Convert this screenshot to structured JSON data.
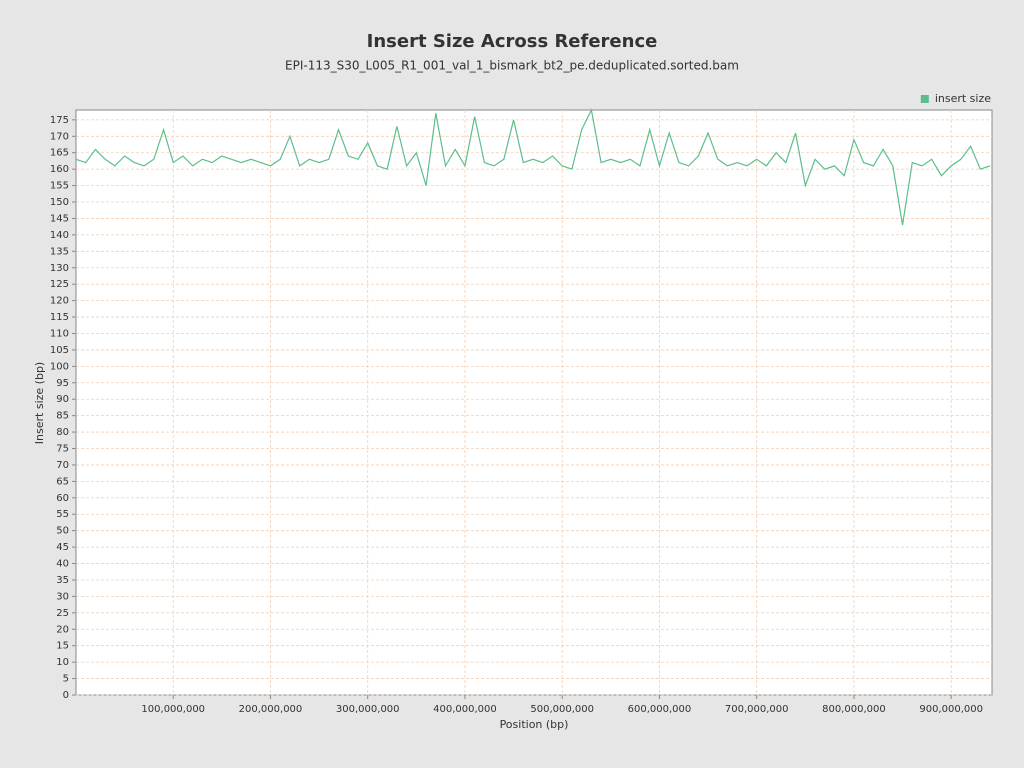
{
  "chart_data": {
    "type": "line",
    "title": "Insert Size Across Reference",
    "subtitle": "EPI-113_S30_L005_R1_001_val_1_bismark_bt2_pe.deduplicated.sorted.bam",
    "x_label": "Position (bp)",
    "y_label": "Insert size (bp)",
    "legend": "top-right",
    "grid": true,
    "xlim": [
      0,
      942000000
    ],
    "ylim": [
      0,
      178
    ],
    "xticks": [
      {
        "value": 100000000,
        "label": "100,000,000"
      },
      {
        "value": 200000000,
        "label": "200,000,000"
      },
      {
        "value": 300000000,
        "label": "300,000,000"
      },
      {
        "value": 400000000,
        "label": "400,000,000"
      },
      {
        "value": 500000000,
        "label": "500,000,000"
      },
      {
        "value": 600000000,
        "label": "600,000,000"
      },
      {
        "value": 700000000,
        "label": "700,000,000"
      },
      {
        "value": 800000000,
        "label": "800,000,000"
      },
      {
        "value": 900000000,
        "label": "900,000,000"
      }
    ],
    "yticks": [
      0,
      5,
      10,
      15,
      20,
      25,
      30,
      35,
      40,
      45,
      50,
      55,
      60,
      65,
      70,
      75,
      80,
      85,
      90,
      95,
      100,
      105,
      110,
      115,
      120,
      125,
      130,
      135,
      140,
      145,
      150,
      155,
      160,
      165,
      170,
      175
    ],
    "x": [
      0,
      10000000,
      20000000,
      30000000,
      40000000,
      50000000,
      60000000,
      70000000,
      80000000,
      90000000,
      100000000,
      110000000,
      120000000,
      130000000,
      140000000,
      150000000,
      160000000,
      170000000,
      180000000,
      190000000,
      200000000,
      210000000,
      220000000,
      230000000,
      240000000,
      250000000,
      260000000,
      270000000,
      280000000,
      290000000,
      300000000,
      310000000,
      320000000,
      330000000,
      340000000,
      350000000,
      360000000,
      370000000,
      380000000,
      390000000,
      400000000,
      410000000,
      420000000,
      430000000,
      440000000,
      450000000,
      460000000,
      470000000,
      480000000,
      490000000,
      500000000,
      510000000,
      520000000,
      530000000,
      540000000,
      550000000,
      560000000,
      570000000,
      580000000,
      590000000,
      600000000,
      610000000,
      620000000,
      630000000,
      640000000,
      650000000,
      660000000,
      670000000,
      680000000,
      690000000,
      700000000,
      710000000,
      720000000,
      730000000,
      740000000,
      750000000,
      760000000,
      770000000,
      780000000,
      790000000,
      800000000,
      810000000,
      820000000,
      830000000,
      840000000,
      850000000,
      860000000,
      870000000,
      880000000,
      890000000,
      900000000,
      910000000,
      920000000,
      930000000,
      940000000
    ],
    "series": [
      {
        "name": "insert size",
        "color": "#5cbf8a",
        "values": [
          163,
          162,
          166,
          163,
          161,
          164,
          162,
          161,
          163,
          172,
          162,
          164,
          161,
          163,
          162,
          164,
          163,
          162,
          163,
          162,
          161,
          163,
          170,
          161,
          163,
          162,
          163,
          172,
          164,
          163,
          168,
          161,
          160,
          173,
          161,
          165,
          155,
          177,
          161,
          166,
          161,
          176,
          162,
          161,
          163,
          175,
          162,
          163,
          162,
          164,
          161,
          160,
          172,
          178,
          162,
          163,
          162,
          163,
          161,
          172,
          161,
          171,
          162,
          161,
          164,
          171,
          163,
          161,
          162,
          161,
          163,
          161,
          165,
          162,
          171,
          155,
          163,
          160,
          161,
          158,
          169,
          162,
          161,
          166,
          161,
          143,
          162,
          161,
          163,
          158,
          161,
          163,
          167,
          160,
          161
        ]
      }
    ]
  }
}
